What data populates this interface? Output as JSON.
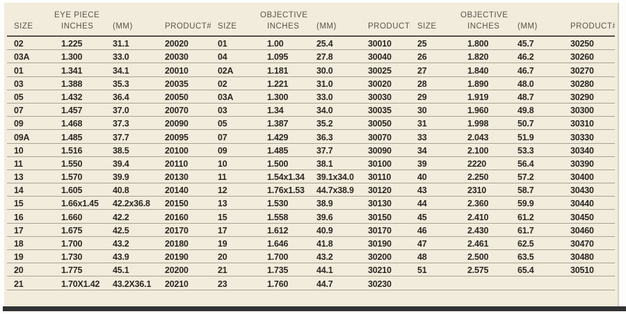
{
  "panel": {
    "page_background": "#ffffff",
    "panel_background": "#f2ecdc",
    "bottom_bar_color": "#323234",
    "header_text_color": "#5a544a",
    "data_text_color": "#2b2722",
    "row_line_color": "#a8a295",
    "header_rule_color": "#55504a"
  },
  "table": {
    "groups": [
      {
        "title": "EYE PIECE"
      },
      {
        "title": "OBJECTIVE"
      },
      {
        "title": "OBJECTIVE"
      }
    ],
    "columns": [
      "SIZE",
      "INCHES",
      "(MM)",
      "PRODUCT#"
    ],
    "rows": [
      [
        "02",
        "1.225",
        "31.1",
        "20020",
        "01",
        "1.00",
        "25.4",
        "30010",
        "25",
        "1.800",
        "45.7",
        "30250"
      ],
      [
        "03A",
        "1.300",
        "33.0",
        "20030",
        "04",
        "1.095",
        "27.8",
        "30040",
        "26",
        "1.820",
        "46.2",
        "30260"
      ],
      [
        "01",
        "1.341",
        "34.1",
        "20010",
        "02A",
        "1.181",
        "30.0",
        "30025",
        "27",
        "1.840",
        "46.7",
        "30270"
      ],
      [
        "03",
        "1.388",
        "35.3",
        "20035",
        "02",
        "1.221",
        "31.0",
        "30020",
        "28",
        "1.890",
        "48.0",
        "30280"
      ],
      [
        "05",
        "1.432",
        "36.4",
        "20050",
        "03A",
        "1.300",
        "33.0",
        "30030",
        "29",
        "1.919",
        "48.7",
        "30290"
      ],
      [
        "07",
        "1.457",
        "37.0",
        "20070",
        "03",
        "1.34",
        "34.0",
        "30035",
        "30",
        "1.960",
        "49.8",
        "30300"
      ],
      [
        "09",
        "1.468",
        "37.3",
        "20090",
        "05",
        "1.387",
        "35.2",
        "30050",
        "31",
        "1.998",
        "50.7",
        "30310"
      ],
      [
        "09A",
        "1.485",
        "37.7",
        "20095",
        "07",
        "1.429",
        "36.3",
        "30070",
        "33",
        "2.043",
        "51.9",
        "30330"
      ],
      [
        "10",
        "1.516",
        "38.5",
        "20100",
        "09",
        "1.485",
        "37.7",
        "30090",
        "34",
        "2.100",
        "53.3",
        "30340"
      ],
      [
        "11",
        "1.550",
        "39.4",
        "20110",
        "10",
        "1.500",
        "38.1",
        "30100",
        "39",
        "2220",
        "56.4",
        "30390"
      ],
      [
        "13",
        "1.570",
        "39.9",
        "20130",
        "11",
        "1.54x1.34",
        "39.1x34.0",
        "30110",
        "40",
        "2.250",
        "57.2",
        "30400"
      ],
      [
        "14",
        "1.605",
        "40.8",
        "20140",
        "12",
        "1.76x1.53",
        "44.7x38.9",
        "30120",
        "43",
        "2310",
        "58.7",
        "30430"
      ],
      [
        "15",
        "1.66x1.45",
        "42.2x36.8",
        "20150",
        "13",
        "1.530",
        "38.9",
        "30130",
        "44",
        "2.360",
        "59.9",
        "30440"
      ],
      [
        "16",
        "1.660",
        "42.2",
        "20160",
        "15",
        "1.558",
        "39.6",
        "30150",
        "45",
        "2.410",
        "61.2",
        "30450"
      ],
      [
        "17",
        "1.675",
        "42.5",
        "20170",
        "17",
        "1.612",
        "40.9",
        "30170",
        "46",
        "2.430",
        "61.7",
        "30460"
      ],
      [
        "18",
        "1.700",
        "43.2",
        "20180",
        "19",
        "1.646",
        "41.8",
        "30190",
        "47",
        "2.461",
        "62.5",
        "30470"
      ],
      [
        "19",
        "1.730",
        "43.9",
        "20190",
        "20",
        "1.700",
        "43.2",
        "30200",
        "48",
        "2.500",
        "63.5",
        "30480"
      ],
      [
        "20",
        "1.775",
        "45.1",
        "20200",
        "21",
        "1.735",
        "44.1",
        "30210",
        "51",
        "2.575",
        "65.4",
        "30510"
      ],
      [
        "21",
        "1.70X1.42",
        "43.2X36.1",
        "20210",
        "23",
        "1.760",
        "44.7",
        "30230",
        "",
        "",
        "",
        ""
      ]
    ]
  }
}
